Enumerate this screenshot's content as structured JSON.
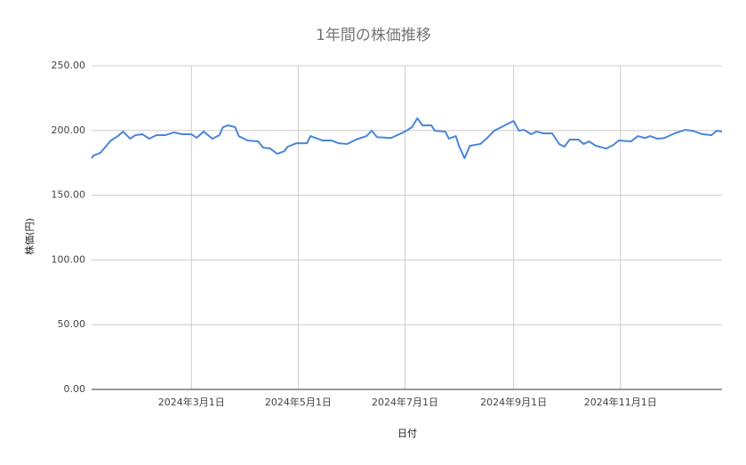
{
  "chart_data": {
    "type": "line",
    "title": "1年間の株価推移",
    "x_label": "日付",
    "y_label": "株価(円)",
    "x": [
      "2024-01-04",
      "2024-01-05",
      "2024-01-09",
      "2024-01-12",
      "2024-01-15",
      "2024-01-19",
      "2024-01-22",
      "2024-01-26",
      "2024-01-29",
      "2024-02-02",
      "2024-02-06",
      "2024-02-10",
      "2024-02-15",
      "2024-02-20",
      "2024-02-25",
      "2024-03-01",
      "2024-03-04",
      "2024-03-08",
      "2024-03-13",
      "2024-03-17",
      "2024-03-19",
      "2024-03-22",
      "2024-03-26",
      "2024-03-28",
      "2024-04-02",
      "2024-04-08",
      "2024-04-11",
      "2024-04-15",
      "2024-04-19",
      "2024-04-23",
      "2024-04-25",
      "2024-04-30",
      "2024-05-06",
      "2024-05-08",
      "2024-05-15",
      "2024-05-20",
      "2024-05-24",
      "2024-05-29",
      "2024-06-03",
      "2024-06-09",
      "2024-06-12",
      "2024-06-15",
      "2024-06-23",
      "2024-07-01",
      "2024-07-05",
      "2024-07-08",
      "2024-07-11",
      "2024-07-16",
      "2024-07-18",
      "2024-07-24",
      "2024-07-26",
      "2024-07-30",
      "2024-08-01",
      "2024-08-04",
      "2024-08-07",
      "2024-08-13",
      "2024-08-17",
      "2024-08-21",
      "2024-08-27",
      "2024-09-01",
      "2024-09-04",
      "2024-09-07",
      "2024-09-11",
      "2024-09-14",
      "2024-09-18",
      "2024-09-23",
      "2024-09-27",
      "2024-09-30",
      "2024-10-03",
      "2024-10-08",
      "2024-10-11",
      "2024-10-14",
      "2024-10-18",
      "2024-10-24",
      "2024-10-28",
      "2024-10-31",
      "2024-11-07",
      "2024-11-11",
      "2024-11-15",
      "2024-11-18",
      "2024-11-22",
      "2024-11-26",
      "2024-12-02",
      "2024-12-08",
      "2024-12-12",
      "2024-12-18",
      "2024-12-23",
      "2024-12-26",
      "2024-12-29"
    ],
    "series": [
      {
        "name": "株価",
        "color": "#4a86d8",
        "values": [
          178.6,
          180.6,
          182.7,
          187.5,
          192.3,
          195.7,
          199.2,
          193.7,
          196.4,
          197.1,
          193.7,
          196.4,
          196.4,
          198.5,
          197.1,
          197.1,
          194.4,
          199.2,
          193.7,
          196.4,
          202.6,
          204,
          202.6,
          195.7,
          192.3,
          191.6,
          186.8,
          186.1,
          182,
          184,
          187.5,
          190.2,
          190.2,
          195.7,
          192.3,
          192.3,
          190.2,
          189.6,
          193,
          195.7,
          199.9,
          194.9,
          194.2,
          199.2,
          202.6,
          209.5,
          204,
          204,
          199.9,
          199.2,
          193.7,
          195.7,
          187.5,
          178.6,
          188.2,
          189.6,
          194.4,
          199.9,
          204,
          207.4,
          199.9,
          200.5,
          197.1,
          199.2,
          197.8,
          197.8,
          189.6,
          187.5,
          193,
          193,
          189.6,
          191.6,
          188.2,
          186.1,
          188.9,
          192.3,
          191.6,
          195.7,
          194.2,
          195.7,
          193.7,
          194.2,
          197.8,
          200.5,
          199.9,
          197.1,
          196.4,
          199.9,
          199.2
        ]
      }
    ],
    "xlim": [
      "2024-01-04",
      "2024-12-29"
    ],
    "xticks": [
      {
        "value": "2024-03-01",
        "label": "2024年3月1日"
      },
      {
        "value": "2024-05-01",
        "label": "2024年5月1日"
      },
      {
        "value": "2024-07-01",
        "label": "2024年7月1日"
      },
      {
        "value": "2024-09-01",
        "label": "2024年9月1日"
      },
      {
        "value": "2024-11-01",
        "label": "2024年11月1日"
      }
    ],
    "ylim": [
      0,
      250
    ],
    "yticks": [
      {
        "value": 0,
        "label": "0.00"
      },
      {
        "value": 50,
        "label": "50.00"
      },
      {
        "value": 100,
        "label": "100.00"
      },
      {
        "value": 150,
        "label": "150.00"
      },
      {
        "value": 200,
        "label": "200.00"
      },
      {
        "value": 250,
        "label": "250.00"
      }
    ],
    "grid": true
  }
}
